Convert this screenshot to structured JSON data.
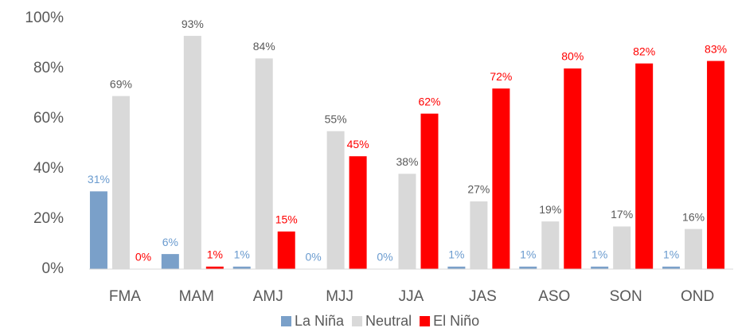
{
  "chart_data": {
    "type": "bar",
    "categories": [
      "FMA",
      "MAM",
      "AMJ",
      "MJJ",
      "JJA",
      "JAS",
      "ASO",
      "SON",
      "OND"
    ],
    "series": [
      {
        "name": "La Niña",
        "color": "#7aa0c9",
        "label_color": "#6a9bcf",
        "values": [
          31,
          6,
          1,
          0,
          0,
          1,
          1,
          1,
          1
        ],
        "value_labels": [
          "31%",
          "6%",
          "1%",
          "0%",
          "0%",
          "1%",
          "1%",
          "1%",
          "1%"
        ]
      },
      {
        "name": "Neutral",
        "color": "#d9d9d9",
        "label_color": "#595959",
        "values": [
          69,
          93,
          84,
          55,
          38,
          27,
          19,
          17,
          16
        ],
        "value_labels": [
          "69%",
          "93%",
          "84%",
          "55%",
          "38%",
          "27%",
          "19%",
          "17%",
          "16%"
        ]
      },
      {
        "name": "El Niño",
        "color": "#ff0000",
        "label_color": "#ff0000",
        "values": [
          0,
          1,
          15,
          45,
          62,
          72,
          80,
          82,
          83
        ],
        "value_labels": [
          "0%",
          "1%",
          "15%",
          "45%",
          "62%",
          "72%",
          "80%",
          "82%",
          "83%"
        ]
      }
    ],
    "ylim": [
      0,
      100
    ],
    "yticks": [
      {
        "value": 0,
        "label": "0%"
      },
      {
        "value": 20,
        "label": "20%"
      },
      {
        "value": 40,
        "label": "40%"
      },
      {
        "value": 60,
        "label": "60%"
      },
      {
        "value": 80,
        "label": "80%"
      },
      {
        "value": 100,
        "label": "100%"
      }
    ],
    "grid": false,
    "legend": "bottom"
  }
}
